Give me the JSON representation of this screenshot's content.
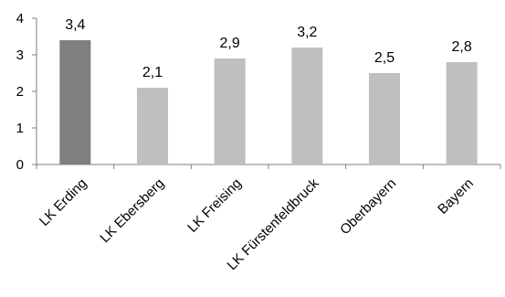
{
  "chart_data": {
    "type": "bar",
    "categories": [
      "LK Erding",
      "LK Ebersberg",
      "LK Freising",
      "LK Fürstenfeldbruck",
      "Oberbayern",
      "Bayern"
    ],
    "values": [
      3.4,
      2.1,
      2.9,
      3.2,
      2.5,
      2.8
    ],
    "data_labels": [
      "3,4",
      "2,1",
      "2,9",
      "3,2",
      "2,5",
      "2,8"
    ],
    "y_ticks": [
      "0",
      "1",
      "2",
      "3",
      "4"
    ],
    "ylim": [
      0,
      4
    ],
    "grid": false,
    "legend": "none",
    "title": "",
    "xlabel": "",
    "ylabel": "",
    "highlight_category": "LK Erding",
    "colors": {
      "highlight": "#7f7f7f",
      "default": "#bfbfbf",
      "axis": "#7f7f7f"
    }
  }
}
